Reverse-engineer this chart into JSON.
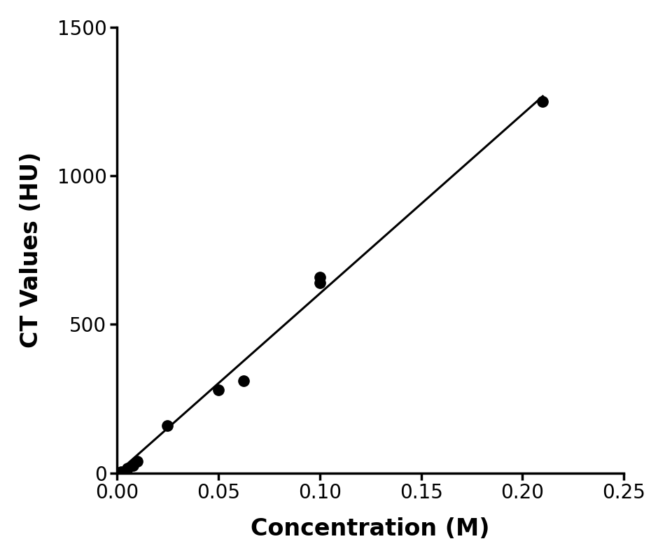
{
  "x_data": [
    0.0,
    0.002,
    0.005,
    0.008,
    0.01,
    0.025,
    0.05,
    0.0625,
    0.1,
    0.1,
    0.21
  ],
  "y_data": [
    0,
    5,
    15,
    25,
    40,
    160,
    280,
    310,
    640,
    660,
    1250
  ],
  "line_x": [
    0.0,
    0.21
  ],
  "line_y": [
    0.0,
    1250
  ],
  "xlabel": "Concentration (M)",
  "ylabel": "CT Values (HU)",
  "xlim": [
    0,
    0.25
  ],
  "ylim": [
    0,
    1500
  ],
  "xticks": [
    0.0,
    0.05,
    0.1,
    0.15,
    0.2,
    0.25
  ],
  "yticks": [
    0,
    500,
    1000,
    1500
  ],
  "xtick_labels": [
    "0.00",
    "0.05",
    "0.10",
    "0.15",
    "0.20",
    "0.25"
  ],
  "ytick_labels": [
    "0",
    "500",
    "1000",
    "1500"
  ],
  "marker_color": "#000000",
  "line_color": "#000000",
  "marker_size": 11,
  "line_width": 2.2,
  "background_color": "#ffffff",
  "axis_color": "#000000",
  "xlabel_fontsize": 24,
  "ylabel_fontsize": 24,
  "tick_fontsize": 20,
  "spine_linewidth": 2.5
}
